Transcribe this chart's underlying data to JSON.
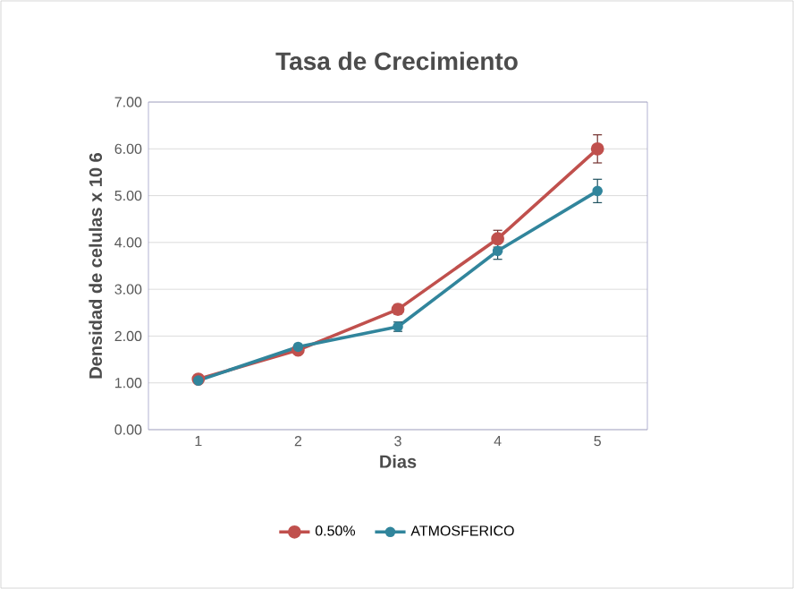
{
  "chart_data": {
    "type": "line",
    "title": "Tasa de Crecimiento",
    "xlabel": "Dias",
    "ylabel": "Densidad de celulas x 10 6",
    "categories": [
      "1",
      "2",
      "3",
      "4",
      "5"
    ],
    "series": [
      {
        "name": "0.50%",
        "color": "#c0504d",
        "values": [
          1.08,
          1.7,
          2.57,
          4.08,
          6.0
        ],
        "errors": [
          null,
          null,
          0.1,
          0.18,
          0.3
        ]
      },
      {
        "name": "ATMOSFERICO",
        "color": "#31859c",
        "values": [
          1.05,
          1.77,
          2.2,
          3.82,
          5.1
        ],
        "errors": [
          null,
          null,
          0.1,
          0.18,
          0.25
        ]
      }
    ],
    "ylim": [
      0,
      7
    ],
    "yticks": [
      {
        "value": 0,
        "label": "0.00"
      },
      {
        "value": 1,
        "label": "1.00"
      },
      {
        "value": 2,
        "label": "2.00"
      },
      {
        "value": 3,
        "label": "3.00"
      },
      {
        "value": 4,
        "label": "4.00"
      },
      {
        "value": 5,
        "label": "5.00"
      },
      {
        "value": 6,
        "label": "6.00"
      },
      {
        "value": 7,
        "label": "7.00"
      }
    ],
    "grid": "y",
    "legend": "bottom",
    "marker": "circle",
    "line_style": "solid"
  }
}
